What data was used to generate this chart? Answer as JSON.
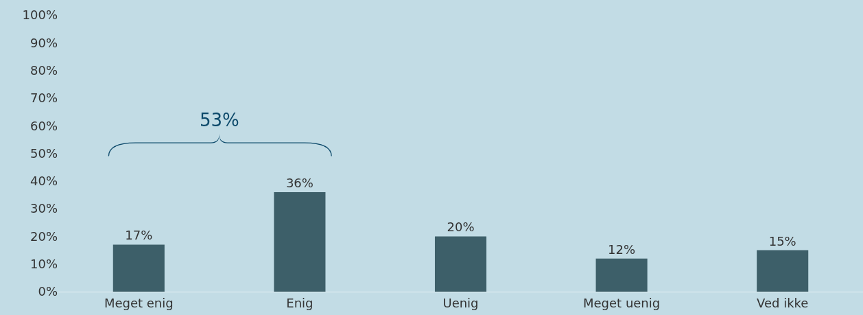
{
  "chart_data": {
    "type": "bar",
    "categories": [
      "Meget enig",
      "Enig",
      "Uenig",
      "Meget uenig",
      "Ved ikke"
    ],
    "values": [
      17,
      36,
      20,
      12,
      15
    ],
    "value_labels": [
      "17%",
      "36%",
      "20%",
      "12%",
      "15%"
    ],
    "color": "#3d5f69",
    "ylim": [
      0,
      100
    ],
    "yticks": [
      {
        "value": 0,
        "label": "0%"
      },
      {
        "value": 10,
        "label": "10%"
      },
      {
        "value": 20,
        "label": "20%"
      },
      {
        "value": 30,
        "label": "30%"
      },
      {
        "value": 40,
        "label": "40%"
      },
      {
        "value": 50,
        "label": "50%"
      },
      {
        "value": 60,
        "label": "60%"
      },
      {
        "value": 70,
        "label": "70%"
      },
      {
        "value": 80,
        "label": "80%"
      },
      {
        "value": 90,
        "label": "90%"
      },
      {
        "value": 100,
        "label": "100%"
      }
    ],
    "annotations": [
      "53%"
    ]
  }
}
